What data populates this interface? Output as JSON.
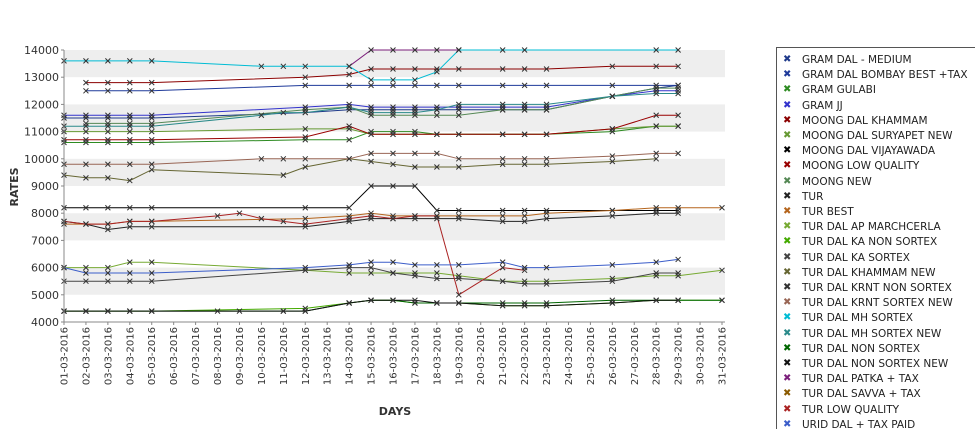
{
  "chart_data": {
    "type": "line",
    "xlabel": "DAYS",
    "ylabel": "RATES",
    "ylim": [
      4000,
      14000
    ],
    "yticks": [
      "4000",
      "5000",
      "6000",
      "7000",
      "8000",
      "9000",
      "10000",
      "11000",
      "12000",
      "13000",
      "14000"
    ],
    "categories": [
      "01-03-2016",
      "02-03-2016",
      "03-03-2016",
      "04-03-2016",
      "05-03-2016",
      "06-03-2016",
      "07-03-2016",
      "08-03-2016",
      "09-03-2016",
      "10-03-2016",
      "11-03-2016",
      "12-03-2016",
      "13-03-2016",
      "14-03-2016",
      "15-03-2016",
      "16-03-2016",
      "17-03-2016",
      "18-03-2016",
      "19-03-2016",
      "20-03-2016",
      "21-03-2016",
      "22-03-2016",
      "23-03-2016",
      "24-03-2016",
      "25-03-2016",
      "26-03-2016",
      "27-03-2016",
      "28-03-2016",
      "29-03-2016",
      "30-03-2016",
      "31-03-2016"
    ],
    "legend_position": "right",
    "grid": "alternating horizontal bands",
    "series": [
      {
        "name": "GRAM DAL - MEDIUM",
        "color": "#1f3a8a",
        "values": [
          11500,
          11500,
          11500,
          11500,
          11500,
          null,
          null,
          null,
          null,
          null,
          null,
          11700,
          null,
          11800,
          11800,
          11800,
          11800,
          11800,
          11800,
          null,
          11800,
          11800,
          11800,
          null,
          null,
          12300,
          null,
          12600,
          12700,
          null,
          null
        ]
      },
      {
        "name": "GRAM DAL BOMBAY BEST +TAX",
        "color": "#1f3a9a",
        "values": [
          null,
          12500,
          12500,
          12500,
          12500,
          null,
          null,
          null,
          null,
          null,
          null,
          12700,
          null,
          12700,
          12700,
          12700,
          12700,
          12700,
          12700,
          null,
          12700,
          12700,
          12700,
          null,
          null,
          12700,
          null,
          12700,
          12700,
          null,
          null
        ]
      },
      {
        "name": "GRAM GULABI",
        "color": "#2e8b22",
        "values": [
          10600,
          10600,
          10600,
          10600,
          10600,
          null,
          null,
          null,
          null,
          null,
          null,
          10700,
          null,
          10700,
          11000,
          11000,
          11000,
          10900,
          10900,
          null,
          10900,
          10900,
          10900,
          null,
          null,
          11000,
          null,
          11200,
          11200,
          null,
          null
        ]
      },
      {
        "name": "GRAM JJ",
        "color": "#3333cc",
        "values": [
          11600,
          11600,
          11600,
          11600,
          11600,
          null,
          null,
          null,
          null,
          null,
          null,
          11900,
          null,
          12000,
          11900,
          11900,
          11900,
          11900,
          11900,
          null,
          11900,
          11900,
          11900,
          null,
          null,
          12300,
          null,
          12500,
          12500,
          null,
          null
        ]
      },
      {
        "name": "MOONG DAL KHAMMAM",
        "color": "#8b0000",
        "values": [
          null,
          12800,
          12800,
          12800,
          12800,
          null,
          null,
          null,
          null,
          null,
          null,
          13000,
          null,
          13100,
          13300,
          13300,
          13300,
          13300,
          13300,
          null,
          13300,
          13300,
          13300,
          null,
          null,
          13400,
          null,
          13400,
          13400,
          null,
          null
        ]
      },
      {
        "name": "MOONG DAL SURYAPET NEW",
        "color": "#669933",
        "values": [
          11000,
          11000,
          11000,
          11000,
          11000,
          null,
          null,
          null,
          null,
          null,
          null,
          11100,
          null,
          11100,
          10900,
          10900,
          10900,
          10900,
          10900,
          null,
          10900,
          10900,
          10900,
          null,
          null,
          11100,
          null,
          11200,
          11200,
          null,
          null
        ]
      },
      {
        "name": "MOONG DAL VIJAYAWADA",
        "color": "#000000",
        "values": [
          8200,
          8200,
          8200,
          8200,
          8200,
          null,
          null,
          null,
          null,
          null,
          null,
          8200,
          null,
          8200,
          9000,
          9000,
          9000,
          8100,
          8100,
          null,
          8100,
          8100,
          8100,
          null,
          null,
          8100,
          null,
          8100,
          8100,
          null,
          null
        ]
      },
      {
        "name": "MOONG LOW QUALITY",
        "color": "#990000",
        "values": [
          10700,
          10700,
          10700,
          10700,
          10700,
          null,
          null,
          null,
          null,
          null,
          null,
          10800,
          null,
          11200,
          10900,
          10900,
          10900,
          10900,
          10900,
          null,
          10900,
          10900,
          10900,
          null,
          null,
          11100,
          null,
          11600,
          11600,
          null,
          null
        ]
      },
      {
        "name": "MOONG NEW",
        "color": "#558855",
        "values": [
          null,
          11300,
          11300,
          11300,
          11300,
          null,
          null,
          null,
          null,
          null,
          null,
          11800,
          null,
          11900,
          11600,
          11600,
          11600,
          11600,
          11600,
          null,
          11800,
          11800,
          11800,
          null,
          null,
          12300,
          null,
          12600,
          12600,
          null,
          null
        ]
      },
      {
        "name": "TUR",
        "color": "#222222",
        "values": [
          7700,
          7600,
          7400,
          7500,
          7500,
          null,
          null,
          null,
          null,
          null,
          null,
          7500,
          null,
          7700,
          7800,
          7800,
          7800,
          7800,
          7800,
          null,
          7700,
          7700,
          7800,
          null,
          null,
          7900,
          null,
          8000,
          8000,
          null,
          null
        ]
      },
      {
        "name": "TUR BEST",
        "color": "#b5651d",
        "values": [
          7600,
          7600,
          7600,
          7700,
          7700,
          null,
          null,
          null,
          null,
          null,
          null,
          7800,
          null,
          7900,
          8000,
          7900,
          7900,
          7900,
          7900,
          null,
          7900,
          7900,
          8000,
          null,
          null,
          8100,
          null,
          8200,
          8200,
          null,
          8200
        ]
      },
      {
        "name": "TUR DAL AP MARCHCERLA",
        "color": "#77aa33",
        "values": [
          6000,
          6000,
          6000,
          6200,
          6200,
          null,
          null,
          null,
          null,
          null,
          null,
          5900,
          null,
          5800,
          5800,
          5800,
          5800,
          5800,
          5700,
          null,
          5500,
          5500,
          5500,
          null,
          null,
          5600,
          null,
          5700,
          5700,
          null,
          5900
        ]
      },
      {
        "name": "TUR DAL KA NON SORTEX",
        "color": "#44aa00",
        "values": [
          4400,
          4400,
          4400,
          4400,
          4400,
          null,
          null,
          null,
          null,
          null,
          null,
          4500,
          null,
          4700,
          4800,
          4800,
          4700,
          4700,
          4700,
          null,
          4600,
          4600,
          4600,
          null,
          null,
          4700,
          null,
          4800,
          4800,
          null,
          4800
        ]
      },
      {
        "name": "TUR DAL KA SORTEX",
        "color": "#444444",
        "values": [
          5500,
          5500,
          5500,
          5500,
          5500,
          null,
          null,
          null,
          null,
          null,
          null,
          5900,
          null,
          6000,
          6000,
          5800,
          5700,
          5600,
          5600,
          null,
          5500,
          5400,
          5400,
          null,
          null,
          5500,
          null,
          5800,
          5800,
          null,
          null
        ]
      },
      {
        "name": "TUR DAL KHAMMAM NEW",
        "color": "#666633",
        "values": [
          9400,
          9300,
          9300,
          9200,
          9600,
          null,
          null,
          null,
          null,
          null,
          9400,
          9700,
          null,
          10000,
          9900,
          9800,
          9700,
          9700,
          9700,
          null,
          9800,
          9800,
          9800,
          null,
          null,
          9900,
          null,
          10000,
          null,
          null,
          null
        ]
      },
      {
        "name": "TUR DAL KRNT NON SORTEX",
        "color": "#333333",
        "values": [
          null,
          null,
          null,
          null,
          null,
          null,
          null,
          null,
          null,
          null,
          null,
          null,
          null,
          null,
          null,
          null,
          null,
          null,
          null,
          null,
          null,
          null,
          null,
          null,
          null,
          null,
          null,
          null,
          null,
          null,
          null
        ]
      },
      {
        "name": "TUR DAL KRNT SORTEX NEW",
        "color": "#996655",
        "values": [
          9800,
          9800,
          9800,
          9800,
          9800,
          null,
          null,
          null,
          null,
          10000,
          10000,
          10000,
          null,
          10000,
          10200,
          10200,
          10200,
          10200,
          10000,
          null,
          10000,
          10000,
          10000,
          null,
          null,
          10100,
          null,
          10200,
          10200,
          null,
          null
        ]
      },
      {
        "name": "TUR DAL MH SORTEX",
        "color": "#00bcd4",
        "values": [
          13600,
          13600,
          13600,
          13600,
          13600,
          null,
          null,
          null,
          null,
          13400,
          13400,
          13400,
          null,
          13400,
          12900,
          12900,
          12900,
          13200,
          14000,
          null,
          14000,
          14000,
          null,
          null,
          null,
          null,
          null,
          14000,
          14000,
          null,
          null
        ]
      },
      {
        "name": "TUR DAL MH SORTEX NEW",
        "color": "#2a8a8a",
        "values": [
          11200,
          11200,
          11200,
          11200,
          11200,
          null,
          null,
          null,
          null,
          11600,
          11700,
          11700,
          null,
          11900,
          11700,
          11700,
          11700,
          11800,
          12000,
          null,
          12000,
          12000,
          12000,
          null,
          null,
          12300,
          null,
          12400,
          12400,
          null,
          null
        ]
      },
      {
        "name": "TUR DAL NON SORTEX",
        "color": "#006600",
        "values": [
          4400,
          4400,
          4400,
          4400,
          4400,
          null,
          null,
          4400,
          4400,
          null,
          4400,
          4400,
          null,
          4700,
          4800,
          4800,
          4700,
          4700,
          4700,
          null,
          4700,
          4700,
          4700,
          null,
          null,
          4800,
          null,
          4800,
          4800,
          null,
          4800
        ]
      },
      {
        "name": "TUR DAL NON SORTEX NEW",
        "color": "#111111",
        "values": [
          4400,
          4400,
          4400,
          4400,
          4400,
          null,
          null,
          null,
          null,
          null,
          4400,
          4400,
          null,
          4700,
          4800,
          4800,
          4800,
          4700,
          4700,
          null,
          4600,
          4600,
          4600,
          null,
          null,
          4700,
          null,
          4800,
          4800,
          null,
          null
        ]
      },
      {
        "name": "TUR DAL PATKA + TAX",
        "color": "#7b1f7b",
        "values": [
          null,
          null,
          null,
          null,
          null,
          null,
          null,
          null,
          null,
          null,
          null,
          null,
          null,
          13400,
          14000,
          14000,
          14000,
          14000,
          14000,
          null,
          null,
          null,
          null,
          null,
          null,
          null,
          null,
          null,
          null,
          null,
          null
        ]
      },
      {
        "name": "TUR DAL SAVVA + TAX",
        "color": "#8a5a00",
        "values": [
          null,
          null,
          null,
          null,
          null,
          null,
          null,
          null,
          null,
          null,
          null,
          null,
          null,
          null,
          null,
          null,
          null,
          null,
          null,
          null,
          null,
          null,
          null,
          null,
          null,
          null,
          null,
          null,
          null,
          null,
          null
        ]
      },
      {
        "name": "TUR LOW QUALITY",
        "color": "#aa2222",
        "values": [
          7700,
          7600,
          7600,
          7700,
          7700,
          null,
          null,
          7900,
          8000,
          7800,
          7700,
          7600,
          null,
          7800,
          7900,
          7800,
          7900,
          7900,
          5000,
          null,
          6000,
          5900,
          null,
          null,
          null,
          null,
          null,
          null,
          null,
          null,
          null
        ]
      },
      {
        "name": "URID DAL + TAX PAID",
        "color": "#3b5dc9",
        "values": [
          6000,
          5800,
          5800,
          5800,
          5800,
          null,
          null,
          null,
          null,
          null,
          null,
          6000,
          null,
          6100,
          6200,
          6200,
          6100,
          6100,
          6100,
          null,
          6200,
          6000,
          6000,
          null,
          null,
          6100,
          null,
          6200,
          6300,
          null,
          null
        ]
      }
    ]
  }
}
